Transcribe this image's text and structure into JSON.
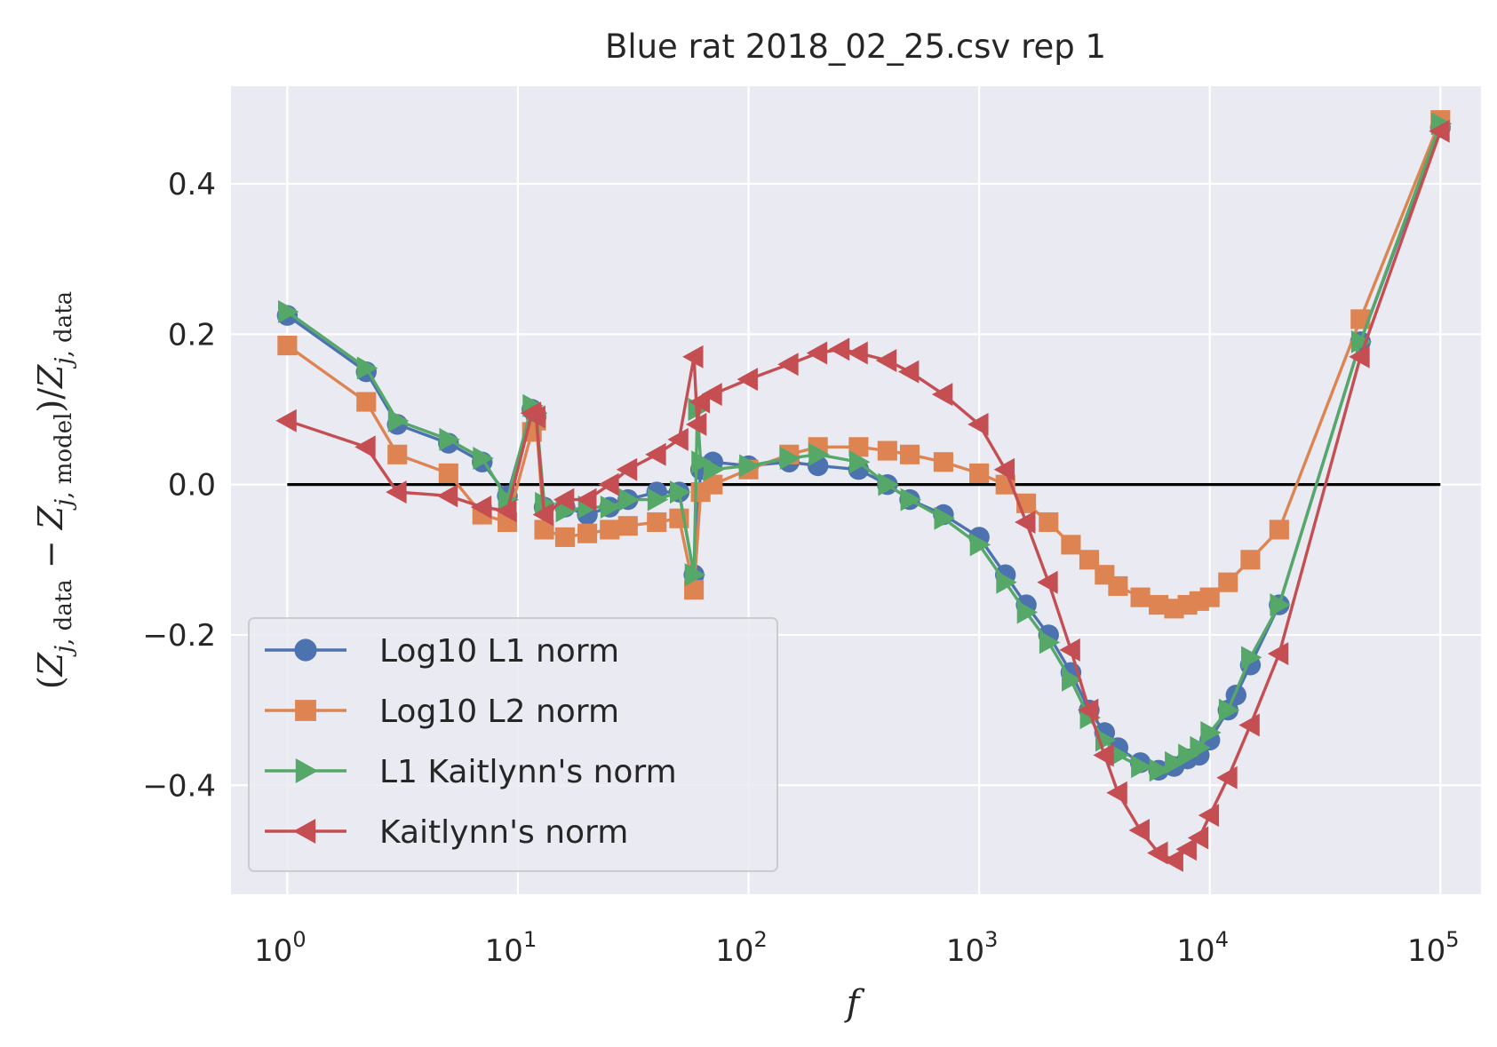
{
  "chart_data": {
    "type": "line",
    "title": "Blue rat 2018_02_25.csv rep 1",
    "xlabel": "f",
    "ylabel": "(Z_{j,data} − Z_{j,model})/Z_{j,data}",
    "xscale": "log",
    "xlim": [
      0.57,
      150000
    ],
    "ylim": [
      -0.545,
      0.53
    ],
    "x_ticks": [
      {
        "value": 1,
        "base": "10",
        "exp": "0"
      },
      {
        "value": 10,
        "base": "10",
        "exp": "1"
      },
      {
        "value": 100,
        "base": "10",
        "exp": "2"
      },
      {
        "value": 1000,
        "base": "10",
        "exp": "3"
      },
      {
        "value": 10000,
        "base": "10",
        "exp": "4"
      },
      {
        "value": 100000,
        "base": "10",
        "exp": "5"
      }
    ],
    "y_ticks": [
      {
        "value": 0.4,
        "label": "0.4"
      },
      {
        "value": 0.2,
        "label": "0.2"
      },
      {
        "value": 0.0,
        "label": "0.0"
      },
      {
        "value": -0.2,
        "label": "−0.2"
      },
      {
        "value": -0.4,
        "label": "−0.4"
      }
    ],
    "grid": true,
    "legend_position": "lower-left",
    "reference_line": {
      "y": 0,
      "x_from": 1,
      "x_to": 100000,
      "color": "#000000"
    },
    "series": [
      {
        "name": "Log10 L1 norm",
        "color": "#4c72b0",
        "marker": "circle",
        "points": [
          [
            1,
            0.225
          ],
          [
            2.2,
            0.15
          ],
          [
            3,
            0.08
          ],
          [
            5,
            0.055
          ],
          [
            7,
            0.03
          ],
          [
            9,
            -0.015
          ],
          [
            11.5,
            0.1
          ],
          [
            12,
            0.09
          ],
          [
            13,
            -0.03
          ],
          [
            16,
            -0.03
          ],
          [
            20,
            -0.04
          ],
          [
            25,
            -0.03
          ],
          [
            30,
            -0.02
          ],
          [
            40,
            -0.01
          ],
          [
            50,
            -0.01
          ],
          [
            58,
            -0.12
          ],
          [
            62,
            0.02
          ],
          [
            70,
            0.03
          ],
          [
            100,
            0.025
          ],
          [
            150,
            0.03
          ],
          [
            200,
            0.025
          ],
          [
            300,
            0.02
          ],
          [
            400,
            0.0
          ],
          [
            500,
            -0.02
          ],
          [
            700,
            -0.04
          ],
          [
            1000,
            -0.07
          ],
          [
            1300,
            -0.12
          ],
          [
            1600,
            -0.16
          ],
          [
            2000,
            -0.2
          ],
          [
            2500,
            -0.25
          ],
          [
            3000,
            -0.3
          ],
          [
            3500,
            -0.33
          ],
          [
            4000,
            -0.35
          ],
          [
            5000,
            -0.37
          ],
          [
            6000,
            -0.38
          ],
          [
            7000,
            -0.375
          ],
          [
            8000,
            -0.365
          ],
          [
            9000,
            -0.36
          ],
          [
            10000,
            -0.34
          ],
          [
            12000,
            -0.3
          ],
          [
            13000,
            -0.28
          ],
          [
            15000,
            -0.24
          ],
          [
            20000,
            -0.16
          ],
          [
            45000,
            0.19
          ],
          [
            100000,
            0.475
          ]
        ]
      },
      {
        "name": "Log10 L2 norm",
        "color": "#dd8452",
        "marker": "square",
        "points": [
          [
            1,
            0.185
          ],
          [
            2.2,
            0.11
          ],
          [
            3,
            0.04
          ],
          [
            5,
            0.015
          ],
          [
            7,
            -0.04
          ],
          [
            9,
            -0.05
          ],
          [
            11.5,
            0.07
          ],
          [
            12,
            0.085
          ],
          [
            13,
            -0.06
          ],
          [
            16,
            -0.07
          ],
          [
            20,
            -0.065
          ],
          [
            25,
            -0.06
          ],
          [
            30,
            -0.055
          ],
          [
            40,
            -0.05
          ],
          [
            50,
            -0.045
          ],
          [
            58,
            -0.14
          ],
          [
            62,
            -0.01
          ],
          [
            70,
            0.0
          ],
          [
            100,
            0.02
          ],
          [
            150,
            0.04
          ],
          [
            200,
            0.05
          ],
          [
            300,
            0.05
          ],
          [
            400,
            0.045
          ],
          [
            500,
            0.04
          ],
          [
            700,
            0.03
          ],
          [
            1000,
            0.015
          ],
          [
            1300,
            0.0
          ],
          [
            1600,
            -0.025
          ],
          [
            2000,
            -0.05
          ],
          [
            2500,
            -0.08
          ],
          [
            3000,
            -0.1
          ],
          [
            3500,
            -0.12
          ],
          [
            4000,
            -0.135
          ],
          [
            5000,
            -0.15
          ],
          [
            6000,
            -0.16
          ],
          [
            7000,
            -0.165
          ],
          [
            8000,
            -0.16
          ],
          [
            9000,
            -0.155
          ],
          [
            10000,
            -0.15
          ],
          [
            12000,
            -0.13
          ],
          [
            15000,
            -0.1
          ],
          [
            20000,
            -0.06
          ],
          [
            45000,
            0.22
          ],
          [
            100000,
            0.485
          ]
        ]
      },
      {
        "name": "L1 Kaitlynn's norm",
        "color": "#55a868",
        "marker": "triangle-right",
        "points": [
          [
            1,
            0.23
          ],
          [
            2.2,
            0.155
          ],
          [
            3,
            0.085
          ],
          [
            5,
            0.06
          ],
          [
            7,
            0.035
          ],
          [
            9,
            -0.02
          ],
          [
            11.5,
            0.105
          ],
          [
            12,
            0.095
          ],
          [
            13,
            -0.025
          ],
          [
            16,
            -0.035
          ],
          [
            20,
            -0.03
          ],
          [
            25,
            -0.03
          ],
          [
            30,
            -0.02
          ],
          [
            40,
            -0.02
          ],
          [
            50,
            -0.01
          ],
          [
            58,
            -0.12
          ],
          [
            60,
            0.1
          ],
          [
            62,
            0.03
          ],
          [
            70,
            0.02
          ],
          [
            100,
            0.025
          ],
          [
            150,
            0.035
          ],
          [
            200,
            0.04
          ],
          [
            300,
            0.03
          ],
          [
            400,
            0.0
          ],
          [
            500,
            -0.02
          ],
          [
            700,
            -0.045
          ],
          [
            1000,
            -0.08
          ],
          [
            1300,
            -0.13
          ],
          [
            1600,
            -0.17
          ],
          [
            2000,
            -0.21
          ],
          [
            2500,
            -0.26
          ],
          [
            3000,
            -0.31
          ],
          [
            3500,
            -0.34
          ],
          [
            4000,
            -0.36
          ],
          [
            5000,
            -0.375
          ],
          [
            6000,
            -0.38
          ],
          [
            7000,
            -0.37
          ],
          [
            8000,
            -0.36
          ],
          [
            9000,
            -0.35
          ],
          [
            10000,
            -0.33
          ],
          [
            12000,
            -0.3
          ],
          [
            15000,
            -0.23
          ],
          [
            20000,
            -0.16
          ],
          [
            45000,
            0.19
          ],
          [
            100000,
            0.48
          ]
        ]
      },
      {
        "name": "Kaitlynn's norm",
        "color": "#c44e52",
        "marker": "triangle-left",
        "points": [
          [
            1,
            0.085
          ],
          [
            2.2,
            0.05
          ],
          [
            3,
            -0.01
          ],
          [
            5,
            -0.015
          ],
          [
            7,
            -0.03
          ],
          [
            9,
            -0.035
          ],
          [
            11.5,
            0.095
          ],
          [
            12,
            0.09
          ],
          [
            13,
            -0.04
          ],
          [
            16,
            -0.02
          ],
          [
            20,
            -0.02
          ],
          [
            25,
            0.0
          ],
          [
            30,
            0.02
          ],
          [
            40,
            0.04
          ],
          [
            50,
            0.06
          ],
          [
            58,
            0.17
          ],
          [
            60,
            0.08
          ],
          [
            62,
            0.11
          ],
          [
            70,
            0.12
          ],
          [
            100,
            0.14
          ],
          [
            150,
            0.16
          ],
          [
            200,
            0.175
          ],
          [
            250,
            0.18
          ],
          [
            300,
            0.175
          ],
          [
            400,
            0.165
          ],
          [
            500,
            0.15
          ],
          [
            700,
            0.12
          ],
          [
            1000,
            0.08
          ],
          [
            1300,
            0.02
          ],
          [
            1600,
            -0.05
          ],
          [
            2000,
            -0.13
          ],
          [
            2500,
            -0.22
          ],
          [
            3000,
            -0.3
          ],
          [
            3500,
            -0.36
          ],
          [
            4000,
            -0.41
          ],
          [
            5000,
            -0.46
          ],
          [
            6000,
            -0.49
          ],
          [
            7000,
            -0.5
          ],
          [
            8000,
            -0.485
          ],
          [
            9000,
            -0.47
          ],
          [
            10000,
            -0.44
          ],
          [
            12000,
            -0.39
          ],
          [
            15000,
            -0.32
          ],
          [
            20000,
            -0.225
          ],
          [
            45000,
            0.17
          ],
          [
            100000,
            0.47
          ]
        ]
      }
    ]
  }
}
